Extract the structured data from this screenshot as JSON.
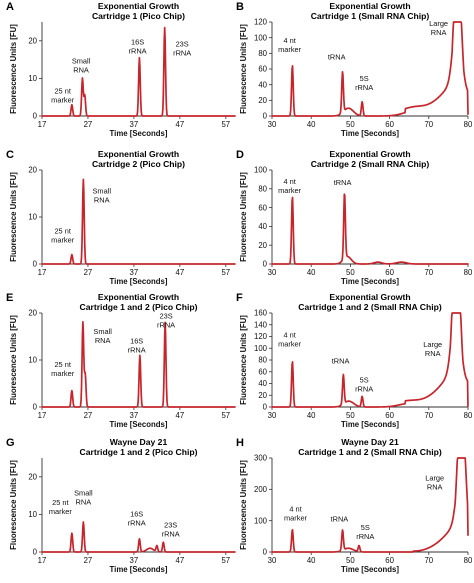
{
  "axis_titles": {
    "x": "Time [Seconds]",
    "y": "Fluorescence Units [FU]"
  },
  "trace_color": "#c6252c",
  "chart_data": [
    {
      "id": "A",
      "letter": "A",
      "type": "line",
      "title": [
        "Exponential Growth",
        "Cartridge 1 (Pico Chip)"
      ],
      "xlabel": "Time [Seconds]",
      "ylabel": "Fluorescence Units [FU]",
      "xlim": [
        17,
        59
      ],
      "ylim": [
        0,
        25
      ],
      "xticks": [
        17,
        27,
        37,
        47,
        57
      ],
      "yticks": [
        0,
        10,
        20
      ],
      "peaks": [
        {
          "x": 23.5,
          "y": 3
        },
        {
          "x": 25.8,
          "y": 10
        },
        {
          "x": 26.3,
          "y": 5.5
        },
        {
          "x": 38.2,
          "y": 15.5
        },
        {
          "x": 43.7,
          "y": 23.5
        }
      ],
      "humps": [],
      "ramp": null,
      "annotations": [
        {
          "lines": [
            "25 nt",
            "marker"
          ],
          "x": 21.5,
          "y": 6
        },
        {
          "lines": [
            "Small",
            "RNA"
          ],
          "x": 25.5,
          "y": 14
        },
        {
          "lines": [
            "16S",
            "rRNA"
          ],
          "x": 37.8,
          "y": 19
        },
        {
          "lines": [
            "23S",
            "rRNA"
          ],
          "x": 47.5,
          "y": 18.5
        }
      ]
    },
    {
      "id": "B",
      "letter": "B",
      "type": "line",
      "title": [
        "Exponential Growth",
        "Cartridge 1 (Small RNA Chip)"
      ],
      "xlabel": "Time [Seconds]",
      "ylabel": "Fluorescence Units [FU]",
      "xlim": [
        30,
        80
      ],
      "ylim": [
        0,
        120
      ],
      "xticks": [
        30,
        40,
        50,
        60,
        70,
        80
      ],
      "yticks": [
        0,
        20,
        40,
        60,
        80,
        100,
        120
      ],
      "peaks": [
        {
          "x": 35.2,
          "y": 65
        },
        {
          "x": 48.0,
          "y": 52
        },
        {
          "x": 53.0,
          "y": 18
        },
        {
          "x": 77.3,
          "y": 100
        }
      ],
      "humps": [
        {
          "x": 49.5,
          "y": 10,
          "w": 2.5
        },
        {
          "x": 66,
          "y": 6,
          "w": 5
        }
      ],
      "ramp": {
        "x0": 64,
        "x1": 76,
        "y0": 5,
        "y1": 45
      },
      "annotations": [
        {
          "lines": [
            "4 nt",
            "marker"
          ],
          "x": 34.5,
          "y": 93
        },
        {
          "lines": [
            "tRNA"
          ],
          "x": 46.5,
          "y": 72
        },
        {
          "lines": [
            "5S",
            "rRNA"
          ],
          "x": 53.5,
          "y": 45
        },
        {
          "lines": [
            "Large",
            "RNA"
          ],
          "x": 72.5,
          "y": 115
        }
      ]
    },
    {
      "id": "C",
      "letter": "C",
      "type": "line",
      "title": [
        "Exponential Growth",
        "Cartridge 2 (Pico Chip)"
      ],
      "xlabel": "Time [Seconds]",
      "ylabel": "Fluorescence Units [FU]",
      "xlim": [
        17,
        59
      ],
      "ylim": [
        0,
        20
      ],
      "xticks": [
        17,
        27,
        37,
        47,
        57
      ],
      "yticks": [
        0,
        10,
        20
      ],
      "peaks": [
        {
          "x": 23.5,
          "y": 2
        },
        {
          "x": 26.0,
          "y": 18
        }
      ],
      "humps": [],
      "ramp": null,
      "annotations": [
        {
          "lines": [
            "Small",
            "RNA"
          ],
          "x": 30.0,
          "y": 15
        },
        {
          "lines": [
            "25 nt",
            "marker"
          ],
          "x": 21.5,
          "y": 6.5
        }
      ]
    },
    {
      "id": "D",
      "letter": "D",
      "type": "line",
      "title": [
        "Exponential Growth",
        "Cartridge 2 (Small RNA Chip)"
      ],
      "xlabel": "Time [Seconds]",
      "ylabel": "Fluorescence Units [FU]",
      "xlim": [
        30,
        80
      ],
      "ylim": [
        0,
        100
      ],
      "xticks": [
        30,
        40,
        50,
        60,
        70,
        80
      ],
      "yticks": [
        0,
        20,
        40,
        60,
        80,
        100
      ],
      "peaks": [
        {
          "x": 35.2,
          "y": 72
        },
        {
          "x": 48.5,
          "y": 70
        }
      ],
      "humps": [
        {
          "x": 49.2,
          "y": 8,
          "w": 2.0
        },
        {
          "x": 57,
          "y": 2,
          "w": 2
        },
        {
          "x": 63,
          "y": 2,
          "w": 2.5
        }
      ],
      "ramp": null,
      "annotations": [
        {
          "lines": [
            "4 nt",
            "marker"
          ],
          "x": 34.5,
          "y": 85
        },
        {
          "lines": [
            "tRNA"
          ],
          "x": 48.0,
          "y": 84
        }
      ]
    },
    {
      "id": "E",
      "letter": "E",
      "type": "line",
      "title": [
        "Exponential Growth",
        "Cartridge 1 and 2 (Pico Chip)"
      ],
      "xlabel": "Time [Seconds]",
      "ylabel": "Fluorescence Units [FU]",
      "xlim": [
        17,
        59
      ],
      "ylim": [
        0,
        20
      ],
      "xticks": [
        17,
        27,
        37,
        47,
        57
      ],
      "yticks": [
        0,
        10,
        20
      ],
      "peaks": [
        {
          "x": 23.5,
          "y": 3.5
        },
        {
          "x": 25.9,
          "y": 18
        },
        {
          "x": 26.4,
          "y": 7
        },
        {
          "x": 38.3,
          "y": 11
        },
        {
          "x": 43.8,
          "y": 18
        }
      ],
      "humps": [],
      "ramp": null,
      "annotations": [
        {
          "lines": [
            "25 nt",
            "marker"
          ],
          "x": 21.5,
          "y": 8.5
        },
        {
          "lines": [
            "Small",
            "RNA"
          ],
          "x": 30.2,
          "y": 15.5
        },
        {
          "lines": [
            "16S",
            "rRNA"
          ],
          "x": 37.6,
          "y": 13.5
        },
        {
          "lines": [
            "23S",
            "rRNA"
          ],
          "x": 44.0,
          "y": 18.8
        }
      ]
    },
    {
      "id": "F",
      "letter": "F",
      "type": "line",
      "title": [
        "Exponential Growth",
        "Cartridge 1 and 2 (Small RNA Chip)"
      ],
      "xlabel": "Time [Seconds]",
      "ylabel": "Fluorescence Units [FU]",
      "xlim": [
        30,
        80
      ],
      "ylim": [
        0,
        160
      ],
      "xticks": [
        30,
        40,
        50,
        60,
        70,
        80
      ],
      "yticks": [
        0,
        20,
        40,
        60,
        80,
        100,
        120,
        140,
        160
      ],
      "peaks": [
        {
          "x": 35.2,
          "y": 78
        },
        {
          "x": 48.2,
          "y": 50
        },
        {
          "x": 53.0,
          "y": 18
        },
        {
          "x": 77.0,
          "y": 148
        }
      ],
      "humps": [
        {
          "x": 49.6,
          "y": 10,
          "w": 2.5
        },
        {
          "x": 65,
          "y": 6,
          "w": 5
        }
      ],
      "ramp": {
        "x0": 64,
        "x1": 75.5,
        "y0": 5,
        "y1": 60
      },
      "annotations": [
        {
          "lines": [
            "4 nt",
            "marker"
          ],
          "x": 34.5,
          "y": 118
        },
        {
          "lines": [
            "tRNA"
          ],
          "x": 47.5,
          "y": 74
        },
        {
          "lines": [
            "5S",
            "rRNA"
          ],
          "x": 53.5,
          "y": 42
        },
        {
          "lines": [
            "Large",
            "RNA"
          ],
          "x": 71.0,
          "y": 102
        }
      ]
    },
    {
      "id": "G",
      "letter": "G",
      "type": "line",
      "title": [
        "Wayne Day 21",
        "Cartridge 1 and 2 (Pico Chip)"
      ],
      "xlabel": "Time [Seconds]",
      "ylabel": "Fluorescence Units [FU]",
      "xlim": [
        17,
        59
      ],
      "ylim": [
        0,
        25
      ],
      "xticks": [
        17,
        27,
        37,
        47,
        57
      ],
      "yticks": [
        0,
        10,
        20
      ],
      "peaks": [
        {
          "x": 23.5,
          "y": 5
        },
        {
          "x": 26.0,
          "y": 8
        },
        {
          "x": 38.2,
          "y": 3.5
        },
        {
          "x": 42.0,
          "y": 1.6
        },
        {
          "x": 43.4,
          "y": 2.6
        }
      ],
      "humps": [
        {
          "x": 40.5,
          "y": 1.0,
          "w": 1.5
        }
      ],
      "ramp": null,
      "annotations": [
        {
          "lines": [
            "25 nt",
            "marker"
          ],
          "x": 21.0,
          "y": 12.5
        },
        {
          "lines": [
            "Small",
            "RNA"
          ],
          "x": 26.0,
          "y": 15
        },
        {
          "lines": [
            "16S",
            "rRNA"
          ],
          "x": 37.6,
          "y": 9.5
        },
        {
          "lines": [
            "23S",
            "rRNA"
          ],
          "x": 45.0,
          "y": 6.5
        }
      ]
    },
    {
      "id": "H",
      "letter": "H",
      "type": "line",
      "title": [
        "Wayne Day 21",
        "Cartridge 1 and 2 (Small RNA Chip)"
      ],
      "xlabel": "Time [Seconds]",
      "ylabel": "Fluorescence Units [FU]",
      "xlim": [
        30,
        80
      ],
      "ylim": [
        0,
        300
      ],
      "xticks": [
        30,
        40,
        50,
        60,
        70,
        80
      ],
      "yticks": [
        0,
        100,
        200,
        300
      ],
      "peaks": [
        {
          "x": 35.2,
          "y": 72
        },
        {
          "x": 48.0,
          "y": 65
        },
        {
          "x": 52.2,
          "y": 20
        },
        {
          "x": 78.3,
          "y": 248
        }
      ],
      "humps": [
        {
          "x": 49.5,
          "y": 12,
          "w": 2.5
        }
      ],
      "ramp": {
        "x0": 66,
        "x1": 76.5,
        "y0": 3,
        "y1": 90
      },
      "annotations": [
        {
          "lines": [
            "4 nt",
            "marker"
          ],
          "x": 36.0,
          "y": 130
        },
        {
          "lines": [
            "tRNA"
          ],
          "x": 47.2,
          "y": 98
        },
        {
          "lines": [
            "5S",
            "rRNA"
          ],
          "x": 53.8,
          "y": 70
        },
        {
          "lines": [
            "Large",
            "RNA"
          ],
          "x": 71.5,
          "y": 228
        }
      ]
    }
  ]
}
